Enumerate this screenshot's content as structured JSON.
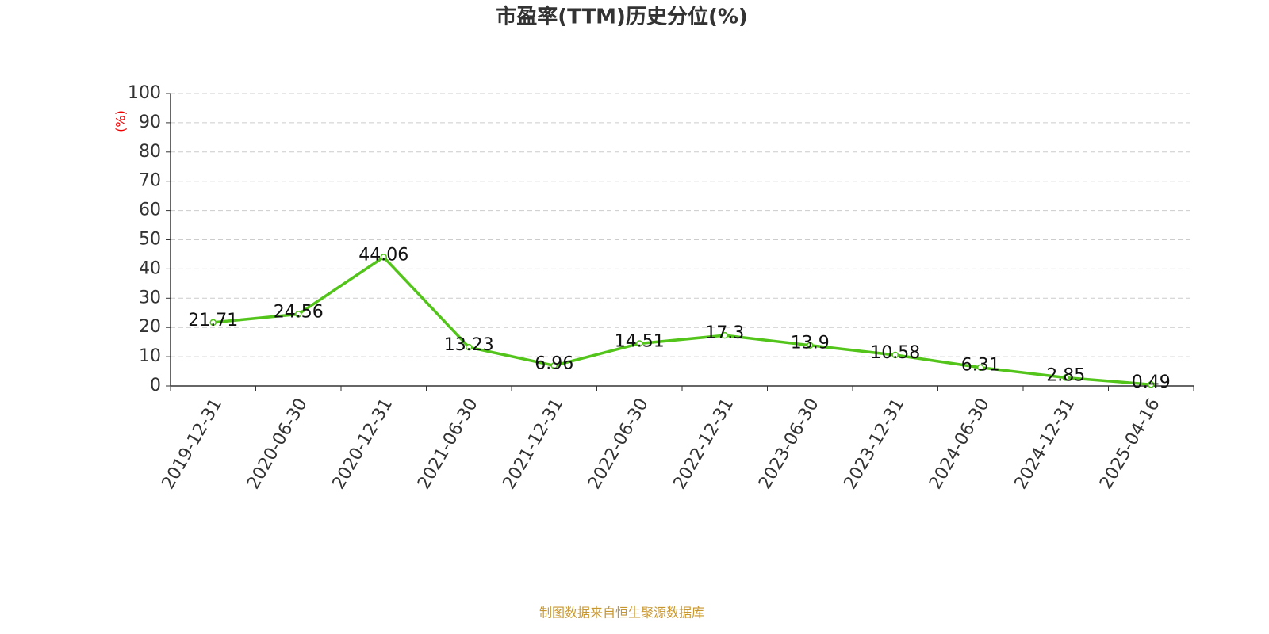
{
  "chart_data": {
    "type": "line",
    "title": "市盈率(TTM)历史分位(%)",
    "y_label": "(%)",
    "categories": [
      "2019-12-31",
      "2020-06-30",
      "2020-12-31",
      "2021-06-30",
      "2021-12-31",
      "2022-06-30",
      "2022-12-31",
      "2023-06-30",
      "2023-12-31",
      "2024-06-30",
      "2024-12-31",
      "2025-04-16"
    ],
    "values": [
      21.71,
      24.56,
      44.06,
      13.23,
      6.96,
      14.51,
      17.3,
      13.9,
      10.58,
      6.31,
      2.85,
      0.49
    ],
    "color": "#52c41a",
    "ylim": [
      0,
      100
    ],
    "yticks": [
      0,
      10,
      20,
      30,
      40,
      50,
      60,
      70,
      80,
      90,
      100
    ],
    "grid": true
  },
  "footer": "制图数据来自恒生聚源数据库"
}
